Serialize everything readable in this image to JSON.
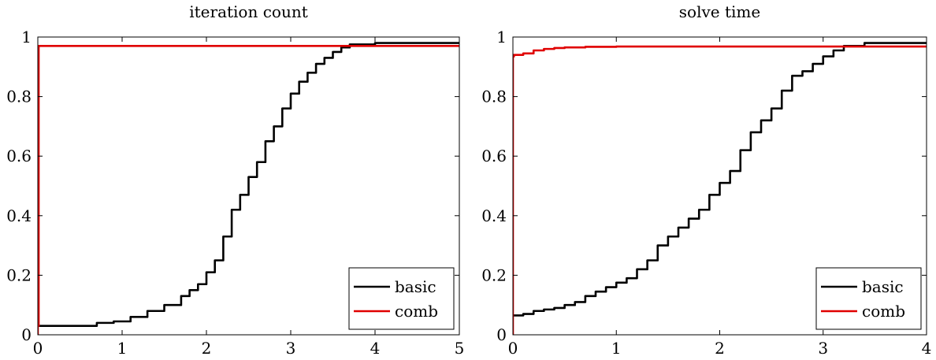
{
  "chart_data": [
    {
      "type": "line",
      "title": "iteration count",
      "xlabel": "",
      "ylabel": "",
      "xlim": [
        0,
        5
      ],
      "ylim": [
        0,
        1
      ],
      "x_ticks": [
        "0",
        "1",
        "2",
        "3",
        "4",
        "5"
      ],
      "y_ticks": [
        "0",
        "0.2",
        "0.4",
        "0.6",
        "0.8",
        "1"
      ],
      "grid": false,
      "legend_position": "bottom-right",
      "series": [
        {
          "name": "basic",
          "color": "#000000",
          "step": true,
          "x": [
            0,
            0.6,
            0.7,
            0.9,
            1.1,
            1.3,
            1.5,
            1.7,
            1.8,
            1.9,
            2.0,
            2.1,
            2.2,
            2.3,
            2.4,
            2.5,
            2.6,
            2.7,
            2.8,
            2.9,
            3.0,
            3.1,
            3.2,
            3.3,
            3.4,
            3.5,
            3.6,
            3.7,
            3.9,
            4.0,
            5.0
          ],
          "y": [
            0.03,
            0.03,
            0.04,
            0.045,
            0.06,
            0.08,
            0.1,
            0.13,
            0.15,
            0.17,
            0.21,
            0.25,
            0.33,
            0.42,
            0.47,
            0.53,
            0.58,
            0.65,
            0.7,
            0.76,
            0.81,
            0.85,
            0.88,
            0.91,
            0.93,
            0.95,
            0.965,
            0.975,
            0.975,
            0.98,
            0.98
          ]
        },
        {
          "name": "comb",
          "color": "#e00000",
          "step": true,
          "x": [
            0,
            0,
            0.01,
            5.0
          ],
          "y": [
            0,
            0.03,
            0.97,
            0.97
          ]
        }
      ]
    },
    {
      "type": "line",
      "title": "solve time",
      "xlabel": "",
      "ylabel": "",
      "xlim": [
        0,
        4
      ],
      "ylim": [
        0,
        1
      ],
      "x_ticks": [
        "0",
        "1",
        "2",
        "3",
        "4"
      ],
      "y_ticks": [
        "0",
        "0.2",
        "0.4",
        "0.6",
        "0.8",
        "1"
      ],
      "grid": false,
      "legend_position": "bottom-right",
      "series": [
        {
          "name": "basic",
          "color": "#000000",
          "step": true,
          "x": [
            0,
            0.1,
            0.2,
            0.3,
            0.4,
            0.5,
            0.6,
            0.7,
            0.8,
            0.9,
            1.0,
            1.1,
            1.2,
            1.3,
            1.4,
            1.5,
            1.6,
            1.7,
            1.8,
            1.9,
            2.0,
            2.1,
            2.2,
            2.3,
            2.4,
            2.5,
            2.6,
            2.7,
            2.8,
            2.9,
            3.0,
            3.1,
            3.2,
            3.3,
            3.4,
            3.5,
            4.0
          ],
          "y": [
            0.065,
            0.07,
            0.08,
            0.085,
            0.09,
            0.1,
            0.11,
            0.13,
            0.145,
            0.16,
            0.175,
            0.19,
            0.22,
            0.25,
            0.3,
            0.33,
            0.36,
            0.39,
            0.42,
            0.47,
            0.51,
            0.55,
            0.62,
            0.68,
            0.72,
            0.76,
            0.82,
            0.87,
            0.885,
            0.91,
            0.935,
            0.955,
            0.97,
            0.97,
            0.98,
            0.98,
            0.98
          ]
        },
        {
          "name": "comb",
          "color": "#e00000",
          "step": true,
          "x": [
            0,
            0,
            0.01,
            0.1,
            0.2,
            0.3,
            0.4,
            0.5,
            0.7,
            1.0,
            4.0
          ],
          "y": [
            0,
            0.935,
            0.94,
            0.945,
            0.955,
            0.96,
            0.963,
            0.965,
            0.967,
            0.968,
            0.97
          ]
        }
      ]
    }
  ]
}
